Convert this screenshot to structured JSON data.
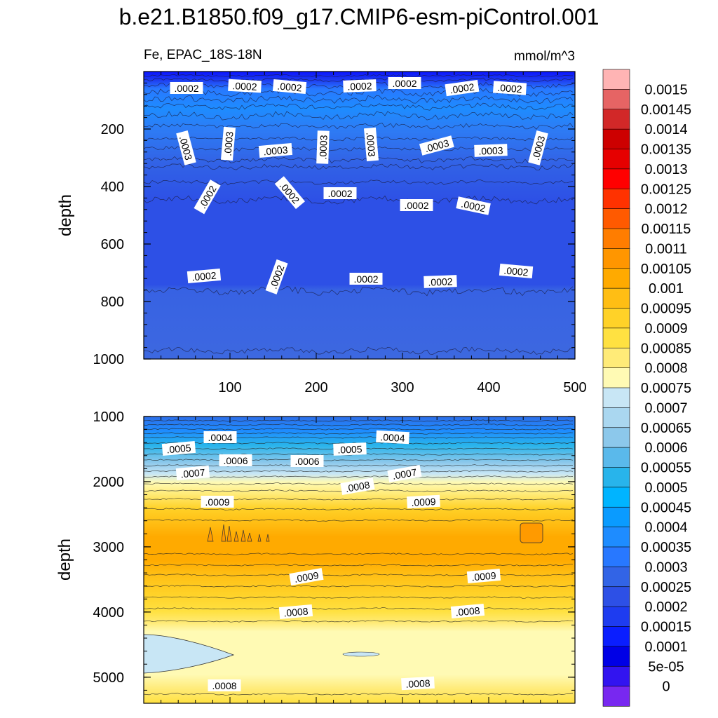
{
  "title": "b.e21.B1850.f09_g17.CMIP6-esm-piControl.001",
  "chart_data": [
    {
      "type": "contour",
      "panel": "upper",
      "subtitle_left": "Fe, EPAC_18S-18N",
      "subtitle_right": "mmol/m^3",
      "xlabel": "",
      "ylabel": "depth",
      "xlim": [
        0,
        500
      ],
      "ylim": [
        1000,
        0
      ],
      "x_ticks": [
        "100",
        "200",
        "300",
        "400",
        "500"
      ],
      "y_ticks": [
        "200",
        "400",
        "600",
        "800",
        "1000"
      ],
      "contour_labels": [
        ".0002",
        ".0002",
        ".0002",
        ".0002",
        ".0002",
        ".0002",
        ".0002",
        ".0003",
        ".0003",
        ".0003",
        ".0003",
        ".0003",
        ".0003",
        ".0003",
        ".0003",
        ".0002",
        ".0002",
        ".0002",
        ".0002",
        ".0002",
        ".0002",
        ".0002",
        ".0002",
        ".0002",
        ".0002"
      ],
      "approx_fill_by_depth": [
        {
          "depth": 0,
          "fe": 0.0001
        },
        {
          "depth": 50,
          "fe": 0.00025
        },
        {
          "depth": 200,
          "fe": 0.0003
        },
        {
          "depth": 350,
          "fe": 0.00025
        },
        {
          "depth": 450,
          "fe": 0.00015
        },
        {
          "depth": 750,
          "fe": 0.0002
        },
        {
          "depth": 1000,
          "fe": 0.0002
        }
      ]
    },
    {
      "type": "contour",
      "panel": "lower",
      "ylabel": "depth",
      "xlim": [
        0,
        500
      ],
      "ylim": [
        5400,
        1000
      ],
      "y_ticks": [
        "1000",
        "2000",
        "3000",
        "4000",
        "5000"
      ],
      "contour_labels": [
        ".0004",
        ".0004",
        ".0005",
        ".0005",
        ".0006",
        ".0006",
        ".0007",
        ".0007",
        ".0008",
        ".0009",
        ".0009",
        ".0009",
        ".0009",
        ".0008",
        ".0008",
        ".0008",
        ".0008"
      ],
      "approx_fill_by_depth": [
        {
          "depth": 1000,
          "fe": 0.00035
        },
        {
          "depth": 1500,
          "fe": 0.0006
        },
        {
          "depth": 2000,
          "fe": 0.00075
        },
        {
          "depth": 2500,
          "fe": 0.00095
        },
        {
          "depth": 2800,
          "fe": 0.001
        },
        {
          "depth": 3500,
          "fe": 0.0009
        },
        {
          "depth": 4000,
          "fe": 0.00075
        },
        {
          "depth": 4600,
          "fe": 0.0007
        },
        {
          "depth": 5400,
          "fe": 0.00085
        }
      ]
    }
  ],
  "colorbar": {
    "labels": [
      "0.0015",
      "0.00145",
      "0.0014",
      "0.00135",
      "0.0013",
      "0.00125",
      "0.0012",
      "0.00115",
      "0.0011",
      "0.00105",
      "0.001",
      "0.00095",
      "0.0009",
      "0.00085",
      "0.0008",
      "0.00075",
      "0.0007",
      "0.00065",
      "0.0006",
      "0.00055",
      "0.0005",
      "0.00045",
      "0.0004",
      "0.00035",
      "0.0003",
      "0.00025",
      "0.0002",
      "0.00015",
      "0.0001",
      "5e-05",
      "0"
    ],
    "colors_top_to_bottom": [
      "#ffb4b4",
      "#e66464",
      "#d22828",
      "#cd0000",
      "#e60000",
      "#ff0000",
      "#ff3200",
      "#ff5a00",
      "#ff7d00",
      "#ff9600",
      "#ffaa00",
      "#ffbe14",
      "#ffd228",
      "#ffe141",
      "#ffeb78",
      "#fffab4",
      "#c8e6f5",
      "#aad7f0",
      "#8cc8eb",
      "#5ab9eb",
      "#28b4eb",
      "#00b4ff",
      "#0a9bff",
      "#1e8cff",
      "#2878ff",
      "#3264e6",
      "#2d50e6",
      "#1e3cf0",
      "#0a1eff",
      "#0000e6",
      "#3214f0",
      "#7828f0"
    ]
  }
}
